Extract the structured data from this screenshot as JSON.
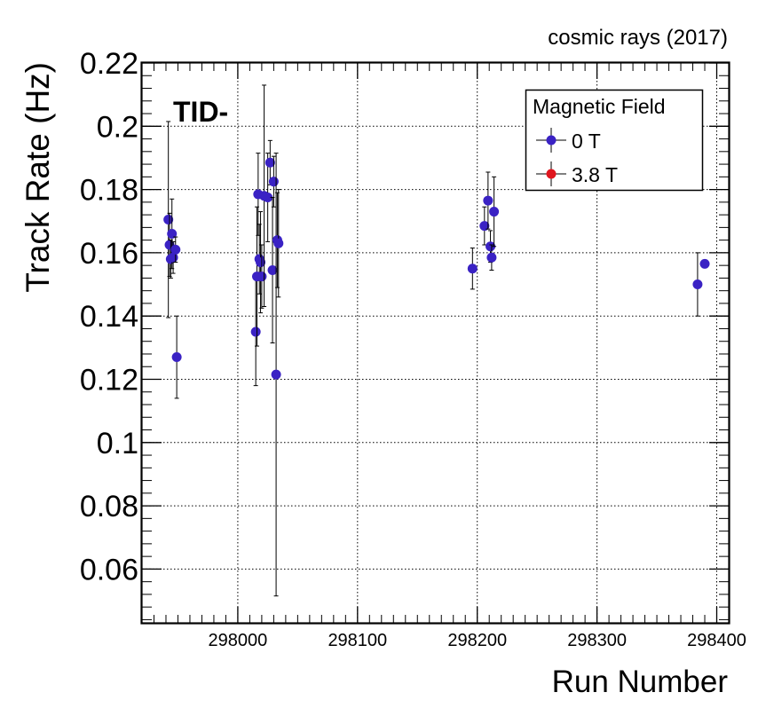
{
  "chart_data": {
    "type": "scatter",
    "top_label": "cosmic rays (2017)",
    "annotation": "TID-",
    "xlabel": "Run Number",
    "ylabel": "Track Rate (Hz)",
    "xlim": [
      297920,
      298410
    ],
    "ylim": [
      0.043,
      0.22
    ],
    "x_ticks": [
      298000,
      298100,
      298200,
      298300,
      298400
    ],
    "x_tick_labels": [
      "298000",
      "298100",
      "298200",
      "298300",
      "298400"
    ],
    "y_ticks": [
      0.06,
      0.08,
      0.1,
      0.12,
      0.14,
      0.16,
      0.18,
      0.2,
      0.22
    ],
    "y_tick_labels": [
      "0.06",
      "0.08",
      "0.1",
      "0.12",
      "0.14",
      "0.16",
      "0.18",
      "0.2",
      "0.22"
    ],
    "grid": true,
    "legend": {
      "title": "Magnetic Field",
      "position": "top-right",
      "entries": [
        "0 T",
        "3.8 T"
      ]
    },
    "series": [
      {
        "name": "0 T",
        "color": "#3a22c4",
        "points": [
          {
            "x": 297942,
            "y": 0.1705,
            "err": 0.031
          },
          {
            "x": 297943,
            "y": 0.1625,
            "err": 0.01
          },
          {
            "x": 297944,
            "y": 0.158,
            "err": 0.006
          },
          {
            "x": 297945,
            "y": 0.166,
            "err": 0.011
          },
          {
            "x": 297946,
            "y": 0.1585,
            "err": 0.005
          },
          {
            "x": 297948,
            "y": 0.161,
            "err": 0.004
          },
          {
            "x": 297949,
            "y": 0.127,
            "err": 0.013
          },
          {
            "x": 298015,
            "y": 0.135,
            "err": 0.017
          },
          {
            "x": 298016,
            "y": 0.1525,
            "err": 0.022
          },
          {
            "x": 298017,
            "y": 0.1785,
            "err": 0.013
          },
          {
            "x": 298018,
            "y": 0.158,
            "err": 0.011
          },
          {
            "x": 298019,
            "y": 0.157,
            "err": 0.016
          },
          {
            "x": 298020,
            "y": 0.1525,
            "err": 0.01
          },
          {
            "x": 298022,
            "y": 0.178,
            "err": 0.035
          },
          {
            "x": 298025,
            "y": 0.1775,
            "err": 0.014
          },
          {
            "x": 298027,
            "y": 0.1885,
            "err": 0.007
          },
          {
            "x": 298029,
            "y": 0.1545,
            "err": 0.023
          },
          {
            "x": 298030,
            "y": 0.1825,
            "err": 0.008
          },
          {
            "x": 298032,
            "y": 0.1215,
            "err": 0.07
          },
          {
            "x": 298033,
            "y": 0.164,
            "err": 0.015
          },
          {
            "x": 298034,
            "y": 0.163,
            "err": 0.017
          },
          {
            "x": 298196,
            "y": 0.155,
            "err": 0.0065
          },
          {
            "x": 298206,
            "y": 0.1685,
            "err": 0.006
          },
          {
            "x": 298209,
            "y": 0.1765,
            "err": 0.009
          },
          {
            "x": 298211,
            "y": 0.162,
            "err": 0.005
          },
          {
            "x": 298212,
            "y": 0.1585,
            "err": 0.004
          },
          {
            "x": 298214,
            "y": 0.173,
            "err": 0.011
          },
          {
            "x": 298384,
            "y": 0.15,
            "err": 0.01
          },
          {
            "x": 298390,
            "y": 0.1565,
            "err": 0.001
          }
        ]
      },
      {
        "name": "3.8 T",
        "color": "#e0161e",
        "points": []
      }
    ]
  }
}
